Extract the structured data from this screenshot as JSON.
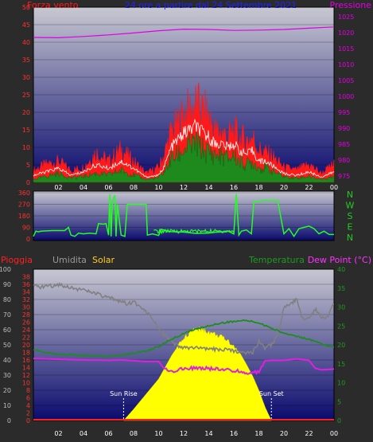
{
  "colors": {
    "background": "#2b2b2b",
    "wind": "#ff1a1a",
    "gust": "#ff1a1a",
    "wind_avg": "#1e8a1e",
    "wind_mean_line": "#ffffff",
    "pressure": "#e000e0",
    "direction": "#22ff22",
    "humidity": "#808080",
    "temperature": "#1e8c1e",
    "dew_point": "#e020e0",
    "solar": "#ffff00",
    "rain": "#ff2020",
    "plot_top": "#c8c8d2",
    "plot_bottom": "#0a0a6e"
  },
  "chart_data": [
    {
      "type": "area",
      "id": "wind_pressure",
      "left_label": "Forza vento",
      "center_label": "24 ore a partire dal 24 Settembre 2021",
      "right_label": "Pressione",
      "left_ticks": [
        0,
        5,
        10,
        15,
        20,
        25,
        30,
        35,
        40,
        45,
        50
      ],
      "right_ticks": [
        975,
        980,
        985,
        990,
        995,
        1000,
        1005,
        1010,
        1015,
        1020,
        1025
      ],
      "ylim_left": [
        0,
        50
      ],
      "ylim_right": [
        973,
        1028
      ],
      "x_ticks": [
        "02",
        "04",
        "06",
        "08",
        "10",
        "12",
        "14",
        "16",
        "18",
        "20",
        "22",
        "00"
      ],
      "xlim_hours": [
        0,
        24
      ],
      "series": [
        {
          "key": "gust",
          "x": [
            0,
            1,
            2,
            3,
            4,
            5,
            6,
            7,
            8,
            9,
            10,
            10.5,
            11,
            11.5,
            12,
            12.5,
            13,
            13.5,
            14,
            14.5,
            15,
            15.5,
            16,
            16.5,
            17,
            17.5,
            18,
            18.5,
            19,
            20,
            21,
            22,
            23,
            24
          ],
          "values": [
            4,
            6,
            7,
            4,
            5,
            10,
            7,
            11,
            7,
            3,
            5,
            10,
            17,
            19,
            23,
            24,
            26,
            24,
            22,
            17,
            17,
            15,
            17,
            15,
            14,
            15,
            11,
            10,
            9,
            5,
            4,
            6,
            3,
            6
          ]
        },
        {
          "key": "wind_mean",
          "x": [
            0,
            1,
            2,
            3,
            4,
            5,
            6,
            7,
            8,
            9,
            10,
            10.5,
            11,
            11.5,
            12,
            12.5,
            13,
            13.5,
            14,
            14.5,
            15,
            15.5,
            16,
            16.5,
            17,
            17.5,
            18,
            18.5,
            19,
            20,
            21,
            22,
            23,
            24
          ],
          "values": [
            2,
            3,
            4,
            2,
            3,
            5,
            4,
            6,
            4,
            1.5,
            2,
            5,
            10,
            12,
            14,
            15,
            16,
            14,
            13,
            11,
            11,
            10,
            11,
            9,
            8,
            9,
            6,
            6,
            5,
            2.5,
            2,
            3,
            1.5,
            3
          ]
        },
        {
          "key": "wind_avg",
          "x": [
            0,
            1,
            2,
            3,
            4,
            5,
            6,
            7,
            8,
            9,
            10,
            10.5,
            11,
            11.5,
            12,
            12.5,
            13,
            13.5,
            14,
            14.5,
            15,
            15.5,
            16,
            16.5,
            17,
            17.5,
            18,
            18.5,
            19,
            20,
            21,
            22,
            23,
            24
          ],
          "values": [
            1,
            2,
            3,
            1.5,
            2,
            3,
            2.5,
            4,
            2.5,
            1,
            1.5,
            4,
            8,
            9,
            11,
            12,
            13,
            11,
            10,
            9,
            9,
            8,
            9,
            7,
            6,
            7,
            5,
            5,
            4,
            2,
            1.5,
            2,
            1,
            2
          ]
        },
        {
          "key": "pressure",
          "x": [
            0,
            2,
            4,
            6,
            8,
            10,
            12,
            14,
            16,
            18,
            20,
            22,
            24
          ],
          "values": [
            1018.5,
            1018.4,
            1018.8,
            1019.3,
            1019.9,
            1020.6,
            1021.1,
            1021.0,
            1020.7,
            1020.8,
            1021.0,
            1021.4,
            1021.8
          ]
        }
      ]
    },
    {
      "type": "line",
      "id": "wind_direction",
      "right_labels": [
        "N",
        "W",
        "S",
        "E",
        "N"
      ],
      "left_ticks": [
        0,
        90,
        180,
        270,
        360
      ],
      "ylim": [
        0,
        360
      ],
      "xlim_hours": [
        0,
        24
      ],
      "series": [
        {
          "key": "direction",
          "x": [
            0,
            0.2,
            0.4,
            0.6,
            1.5,
            2.5,
            2.8,
            3.0,
            3.3,
            3.6,
            4.0,
            4.5,
            5.0,
            5.2,
            5.6,
            5.8,
            6.0,
            6.1,
            6.2,
            6.3,
            6.5,
            6.6,
            6.7,
            7.0,
            7.3,
            7.5,
            9.0,
            9.1,
            9.5,
            10.0,
            10.2,
            11,
            12,
            13,
            14,
            14.5,
            15,
            15.5,
            16,
            16.2,
            16.4,
            16.6,
            17,
            17.4,
            17.6,
            18,
            18.2,
            19.5,
            20,
            20.4,
            20.8,
            21.2,
            22,
            22.4,
            22.8,
            23.2,
            23.6,
            24
          ],
          "values": [
            20,
            60,
            55,
            60,
            65,
            65,
            90,
            30,
            20,
            45,
            40,
            45,
            40,
            120,
            115,
            120,
            30,
            350,
            20,
            290,
            340,
            20,
            270,
            30,
            20,
            270,
            270,
            30,
            40,
            30,
            60,
            50,
            60,
            45,
            55,
            50,
            40,
            50,
            40,
            350,
            30,
            60,
            70,
            40,
            290,
            290,
            300,
            300,
            40,
            80,
            20,
            80,
            100,
            80,
            40,
            60,
            35,
            35
          ]
        }
      ]
    },
    {
      "type": "area",
      "id": "temperature_humidity_solar",
      "labels": {
        "rain": "Pioggia",
        "humidity": "Umidita",
        "solar": "Solar",
        "temperature": "Temperatura",
        "dew_point": "Dew Point (°C)"
      },
      "humidity_ticks": [
        0,
        10,
        20,
        30,
        40,
        50,
        60,
        70,
        80,
        90,
        100
      ],
      "rain_ticks": [
        0,
        2,
        4,
        6,
        8,
        10,
        12,
        14,
        16,
        18,
        20,
        22,
        24,
        26,
        28,
        30,
        32,
        34,
        36,
        38
      ],
      "temp_ticks": [
        0,
        5,
        10,
        15,
        20,
        25,
        30,
        35,
        40
      ],
      "ylim_humidity": [
        0,
        100
      ],
      "ylim_temp": [
        0,
        40
      ],
      "x_ticks": [
        "02",
        "04",
        "06",
        "08",
        "10",
        "12",
        "14",
        "16",
        "18",
        "20",
        "22",
        "00"
      ],
      "xlim_hours": [
        0,
        24
      ],
      "annotations": [
        {
          "text": "Sun Rise",
          "x": 7.2
        },
        {
          "text": "Sun Set",
          "x": 19.0
        }
      ],
      "series": [
        {
          "key": "humidity",
          "x": [
            0,
            0.5,
            1,
            1.5,
            2,
            3,
            4,
            5,
            5.5,
            6,
            6.5,
            7,
            7.5,
            8,
            8.5,
            9,
            9.5,
            10,
            10.5,
            11,
            11.5,
            12,
            13,
            14,
            15,
            16,
            17,
            17.5,
            18,
            18.5,
            19,
            19.5,
            20,
            21,
            21.5,
            22,
            22.5,
            23,
            23.5,
            24
          ],
          "values": [
            89,
            88,
            89,
            89,
            90,
            88,
            86,
            84,
            82,
            81,
            80,
            79,
            77,
            78,
            76,
            72,
            68,
            61,
            56,
            52,
            49,
            48,
            48,
            47,
            47,
            46,
            45,
            45,
            52,
            48,
            50,
            57,
            74,
            80,
            67,
            68,
            74,
            68,
            69,
            77
          ]
        },
        {
          "key": "temperature",
          "x": [
            0,
            1,
            2,
            3,
            4,
            5,
            6,
            7,
            8,
            9,
            10,
            11,
            12,
            13,
            14,
            15,
            16,
            17,
            18,
            19,
            20,
            21,
            22,
            23,
            24
          ],
          "values": [
            18.8,
            17.9,
            17.5,
            17.4,
            17.2,
            17.1,
            16.9,
            17.3,
            17.8,
            18.4,
            19.5,
            21.4,
            23.0,
            24.2,
            25.0,
            25.8,
            26.2,
            26.4,
            25.8,
            24.4,
            23.1,
            22.3,
            21.4,
            20.2,
            19.3
          ]
        },
        {
          "key": "dew_point",
          "x": [
            0,
            2,
            4,
            6,
            7,
            8,
            9,
            10,
            10.5,
            11,
            12,
            13,
            14,
            15,
            16,
            17,
            18,
            18.5,
            19,
            20,
            21,
            22,
            22.5,
            23,
            24
          ],
          "values": [
            16.4,
            16.2,
            16.0,
            15.9,
            16.0,
            15.8,
            15.6,
            15.6,
            13.4,
            13.1,
            13.6,
            13.9,
            13.8,
            13.4,
            13.2,
            12.6,
            12.9,
            15.8,
            15.9,
            15.9,
            16.3,
            15.9,
            13.8,
            13.4,
            13.6
          ]
        },
        {
          "key": "solar",
          "x": [
            7.2,
            8,
            9,
            10,
            11,
            12,
            12.5,
            13,
            13.5,
            14,
            14.5,
            15,
            15.5,
            16,
            16.5,
            17,
            17.5,
            18,
            18.5,
            19
          ],
          "values": [
            0,
            3,
            7,
            11,
            17,
            22,
            23.5,
            24.4,
            24.3,
            23.6,
            23.1,
            22.3,
            21.4,
            19.9,
            17.8,
            14.9,
            11.8,
            8.0,
            3.5,
            0
          ]
        },
        {
          "key": "rain",
          "x": [
            0,
            24
          ],
          "values": [
            0,
            0
          ]
        }
      ]
    }
  ]
}
